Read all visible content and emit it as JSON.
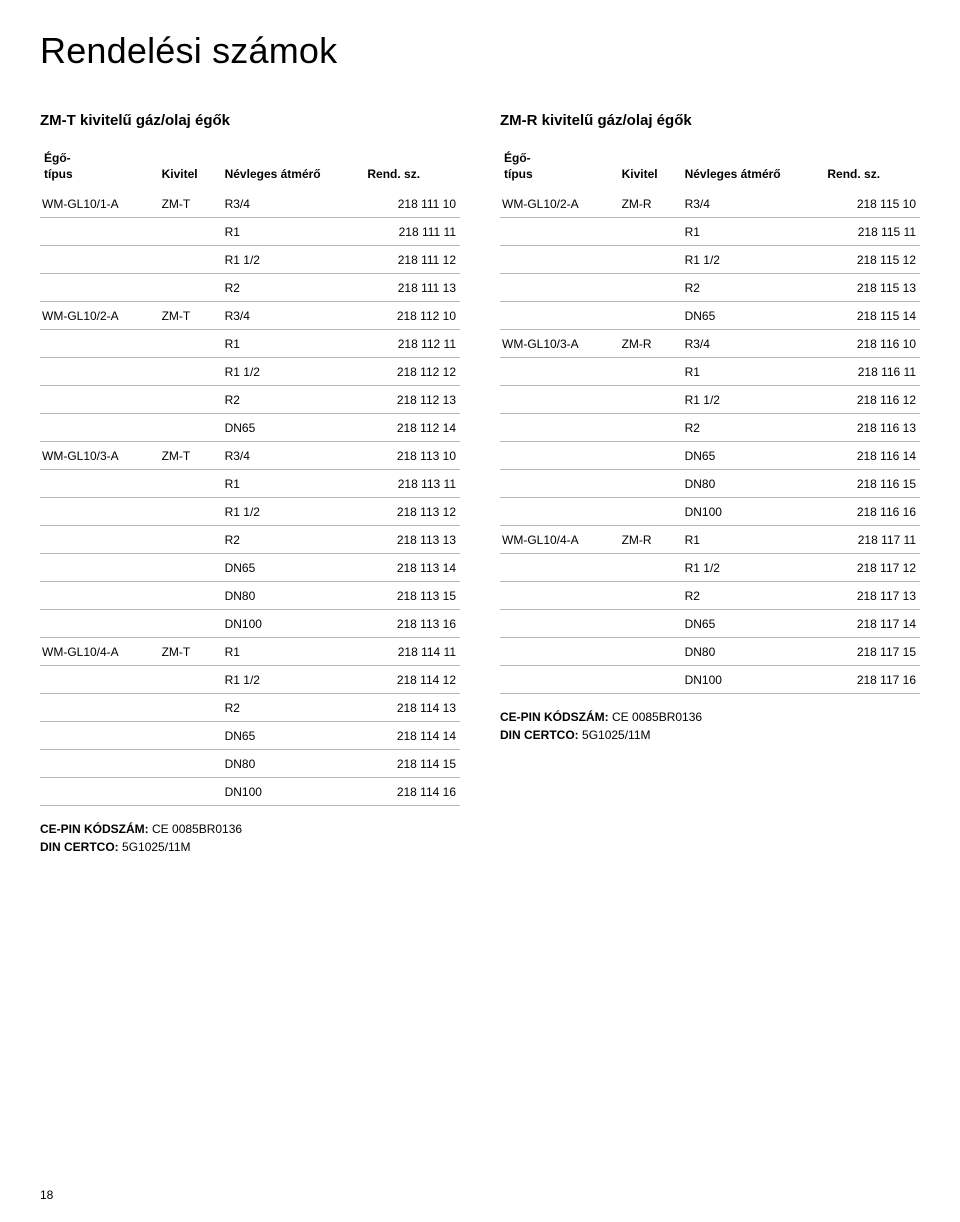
{
  "page": {
    "title": "Rendelési számok",
    "number": "18"
  },
  "left": {
    "subhead": "ZM-T kivitelű gáz/olaj égők",
    "columns": {
      "c0": "Égő-\ntípus",
      "c1": "Kivitel",
      "c2": "Névleges átmérő",
      "c3": "Rend. sz."
    },
    "col_widths": {
      "c0": "28%",
      "c1": "15%",
      "c2": "34%",
      "c3": "23%"
    },
    "rows": [
      [
        "WM-GL10/1-A",
        "ZM-T",
        "R3/4",
        "218 111 10"
      ],
      [
        "",
        "",
        "R1",
        "218 111 11"
      ],
      [
        "",
        "",
        "R1 1/2",
        "218 111 12"
      ],
      [
        "",
        "",
        "R2",
        "218 111 13"
      ],
      [
        "WM-GL10/2-A",
        "ZM-T",
        "R3/4",
        "218 112 10"
      ],
      [
        "",
        "",
        "R1",
        "218 112 11"
      ],
      [
        "",
        "",
        "R1 1/2",
        "218 112 12"
      ],
      [
        "",
        "",
        "R2",
        "218 112 13"
      ],
      [
        "",
        "",
        "DN65",
        "218 112 14"
      ],
      [
        "WM-GL10/3-A",
        "ZM-T",
        "R3/4",
        "218 113 10"
      ],
      [
        "",
        "",
        "R1",
        "218 113 11"
      ],
      [
        "",
        "",
        "R1 1/2",
        "218 113 12"
      ],
      [
        "",
        "",
        "R2",
        "218 113 13"
      ],
      [
        "",
        "",
        "DN65",
        "218 113 14"
      ],
      [
        "",
        "",
        "DN80",
        "218 113 15"
      ],
      [
        "",
        "",
        "DN100",
        "218 113 16"
      ],
      [
        "WM-GL10/4-A",
        "ZM-T",
        "R1",
        "218 114 11"
      ],
      [
        "",
        "",
        "R1 1/2",
        "218 114 12"
      ],
      [
        "",
        "",
        "R2",
        "218 114 13"
      ],
      [
        "",
        "",
        "DN65",
        "218 114 14"
      ],
      [
        "",
        "",
        "DN80",
        "218 114 15"
      ],
      [
        "",
        "",
        "DN100",
        "218 114 16"
      ]
    ],
    "footnote": {
      "l1_label": "CE-PIN KÓDSZÁM:",
      "l1_value": "CE 0085BR0136",
      "l2_label": "DIN CERTCO:",
      "l2_value": "5G1025/11M"
    }
  },
  "right": {
    "subhead": "ZM-R kivitelű gáz/olaj égők",
    "columns": {
      "c0": "Égő-\ntípus",
      "c1": "Kivitel",
      "c2": "Névleges átmérő",
      "c3": "Rend. sz."
    },
    "col_widths": {
      "c0": "28%",
      "c1": "15%",
      "c2": "34%",
      "c3": "23%"
    },
    "rows": [
      [
        "WM-GL10/2-A",
        "ZM-R",
        "R3/4",
        "218 115 10"
      ],
      [
        "",
        "",
        "R1",
        "218 115 11"
      ],
      [
        "",
        "",
        "R1 1/2",
        "218 115 12"
      ],
      [
        "",
        "",
        "R2",
        "218 115 13"
      ],
      [
        "",
        "",
        "DN65",
        "218 115 14"
      ],
      [
        "WM-GL10/3-A",
        "ZM-R",
        "R3/4",
        "218 116 10"
      ],
      [
        "",
        "",
        "R1",
        "218 116 11"
      ],
      [
        "",
        "",
        "R1 1/2",
        "218 116 12"
      ],
      [
        "",
        "",
        "R2",
        "218 116 13"
      ],
      [
        "",
        "",
        "DN65",
        "218 116 14"
      ],
      [
        "",
        "",
        "DN80",
        "218 116 15"
      ],
      [
        "",
        "",
        "DN100",
        "218 116 16"
      ],
      [
        "WM-GL10/4-A",
        "ZM-R",
        "R1",
        "218 117 11"
      ],
      [
        "",
        "",
        "R1 1/2",
        "218 117 12"
      ],
      [
        "",
        "",
        "R2",
        "218 117 13"
      ],
      [
        "",
        "",
        "DN65",
        "218 117 14"
      ],
      [
        "",
        "",
        "DN80",
        "218 117 15"
      ],
      [
        "",
        "",
        "DN100",
        "218 117 16"
      ]
    ],
    "footnote": {
      "l1_label": "CE-PIN KÓDSZÁM:",
      "l1_value": "CE 0085BR0136",
      "l2_label": "DIN CERTCO:",
      "l2_value": "5G1025/11M"
    }
  }
}
